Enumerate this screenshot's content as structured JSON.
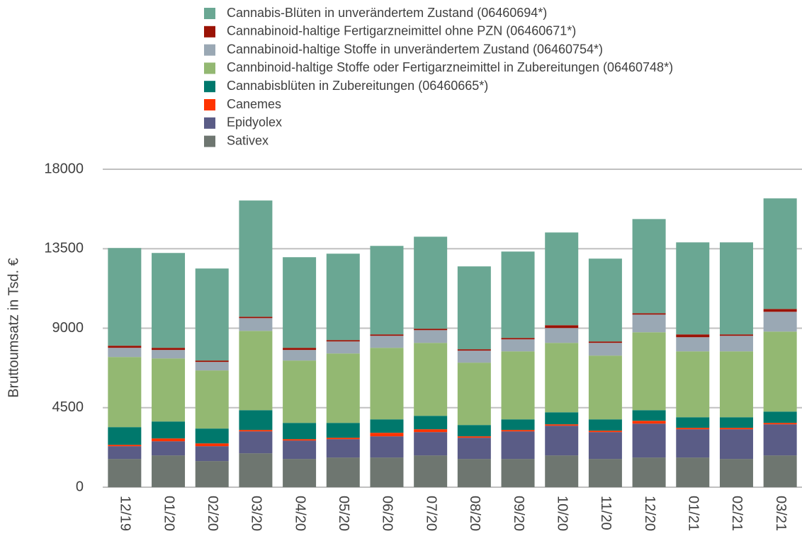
{
  "chart_data": {
    "type": "stacked_bar",
    "y_label": "Bruttoumsatz in Tsd. €",
    "categories": [
      "12/19",
      "01/20",
      "02/20",
      "03/20",
      "04/20",
      "05/20",
      "06/20",
      "07/20",
      "08/20",
      "09/20",
      "10/20",
      "11/20",
      "12/20",
      "01/21",
      "02/21",
      "03/21"
    ],
    "series": [
      {
        "name": "Cannabis-Blüten in unverändertem Zustand (06460694*)",
        "color": "#6aa793",
        "values": [
          5530,
          5370,
          5210,
          6580,
          5130,
          4890,
          5010,
          5210,
          4690,
          4890,
          5250,
          4690,
          5330,
          5210,
          5210,
          6260
        ]
      },
      {
        "name": "Cannabinoid-haltige Fertigarzneimittel ohne PZN (06460671*)",
        "color": "#9b1306",
        "values": [
          120,
          120,
          80,
          80,
          120,
          80,
          80,
          80,
          80,
          80,
          160,
          80,
          80,
          160,
          80,
          160
        ]
      },
      {
        "name": "Cannabinoid-haltige Stoffe in unverändertem Zustand  (06460754*)",
        "color": "#9aa8b4",
        "values": [
          520,
          480,
          480,
          720,
          600,
          680,
          680,
          720,
          680,
          680,
          840,
          720,
          1000,
          800,
          880,
          1120
        ]
      },
      {
        "name": "Cannbinoid-haltige Stoffe oder Fertigarzneimittel in Zubereitungen (06460748*)",
        "color": "#93b872",
        "values": [
          3970,
          3570,
          3290,
          4490,
          3530,
          3930,
          4050,
          4130,
          3530,
          3850,
          3930,
          3610,
          4410,
          3730,
          3730,
          4530
        ]
      },
      {
        "name": "Cannabisblüten in Zubereitungen (06460665*)",
        "color": "#00786c",
        "values": [
          1000,
          960,
          840,
          1120,
          920,
          840,
          760,
          760,
          640,
          600,
          680,
          640,
          600,
          600,
          600,
          640
        ]
      },
      {
        "name": "Canemes",
        "color": "#ff3300",
        "values": [
          80,
          160,
          160,
          80,
          80,
          80,
          200,
          160,
          80,
          80,
          80,
          80,
          160,
          80,
          80,
          80
        ]
      },
      {
        "name": "Epidyolex",
        "color": "#5a5c86",
        "values": [
          720,
          800,
          840,
          1240,
          1040,
          1040,
          1200,
          1320,
          1200,
          1560,
          1680,
          1520,
          1920,
          1600,
          1680,
          1760
        ]
      },
      {
        "name": "Sativex",
        "color": "#6e7670",
        "values": [
          1600,
          1800,
          1480,
          1920,
          1600,
          1680,
          1680,
          1800,
          1600,
          1600,
          1800,
          1600,
          1680,
          1680,
          1600,
          1800
        ]
      }
    ],
    "ylim": [
      0,
      18000
    ],
    "yticks": [
      0,
      4500,
      9000,
      13500,
      18000
    ],
    "grid": true
  }
}
